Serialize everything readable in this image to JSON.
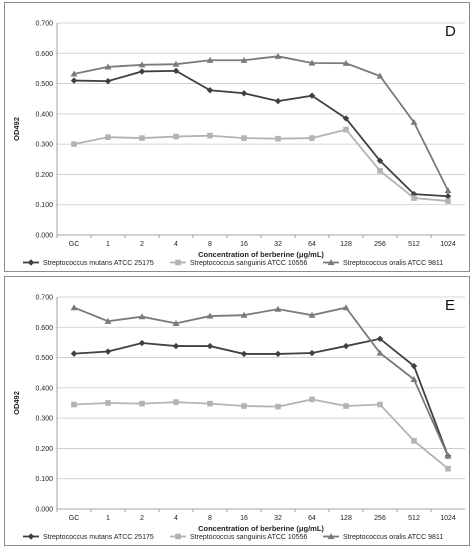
{
  "chart_data": [
    {
      "type": "line",
      "panel_label": "D",
      "categories": [
        "GC",
        "1",
        "2",
        "4",
        "8",
        "16",
        "32",
        "64",
        "128",
        "256",
        "512",
        "1024"
      ],
      "ylim": [
        0,
        0.7
      ],
      "yticks": [
        "0.000",
        "0.100",
        "0.200",
        "0.300",
        "0.400",
        "0.500",
        "0.600",
        "0.700"
      ],
      "ylabel": "OD492",
      "xlabel": "Concentration of berberine (μg/mL)",
      "grid": true,
      "legend_position": "bottom",
      "series": [
        {
          "name": "Streptococcus mutans ATCC 25175",
          "color": "#404040",
          "marker": "diamond",
          "values": [
            0.51,
            0.508,
            0.54,
            0.542,
            0.478,
            0.468,
            0.442,
            0.46,
            0.385,
            0.245,
            0.135,
            0.128
          ]
        },
        {
          "name": "Streptococcus sanguinis ATCC 10556",
          "color": "#b3b3b3",
          "marker": "square",
          "values": [
            0.3,
            0.323,
            0.32,
            0.325,
            0.328,
            0.32,
            0.318,
            0.32,
            0.348,
            0.212,
            0.122,
            0.112
          ]
        },
        {
          "name": "Streptococcus oralis ATCC 9811",
          "color": "#7a7a7a",
          "marker": "triangle",
          "values": [
            0.532,
            0.555,
            0.562,
            0.564,
            0.577,
            0.577,
            0.59,
            0.568,
            0.567,
            0.525,
            0.372,
            0.147
          ]
        }
      ]
    },
    {
      "type": "line",
      "panel_label": "E",
      "categories": [
        "GC",
        "1",
        "2",
        "4",
        "8",
        "16",
        "32",
        "64",
        "128",
        "256",
        "512",
        "1024"
      ],
      "ylim": [
        0,
        0.7
      ],
      "yticks": [
        "0.000",
        "0.100",
        "0.200",
        "0.300",
        "0.400",
        "0.500",
        "0.600",
        "0.700"
      ],
      "ylabel": "OD492",
      "xlabel": "Concentration of berberine (μg/mL)",
      "grid": true,
      "legend_position": "bottom",
      "series": [
        {
          "name": "Streptococcus mutans ATCC 25175",
          "color": "#404040",
          "marker": "diamond",
          "values": [
            0.513,
            0.52,
            0.548,
            0.538,
            0.538,
            0.512,
            0.512,
            0.515,
            0.538,
            0.562,
            0.472,
            0.175
          ]
        },
        {
          "name": "Streptococcus sanguinis ATCC 10556",
          "color": "#b3b3b3",
          "marker": "square",
          "values": [
            0.345,
            0.35,
            0.348,
            0.353,
            0.348,
            0.34,
            0.338,
            0.362,
            0.34,
            0.345,
            0.225,
            0.133
          ]
        },
        {
          "name": "Streptococcus oralis ATCC 9811",
          "color": "#7a7a7a",
          "marker": "triangle",
          "values": [
            0.665,
            0.62,
            0.635,
            0.613,
            0.637,
            0.64,
            0.66,
            0.64,
            0.665,
            0.515,
            0.428,
            0.175
          ]
        }
      ]
    }
  ]
}
